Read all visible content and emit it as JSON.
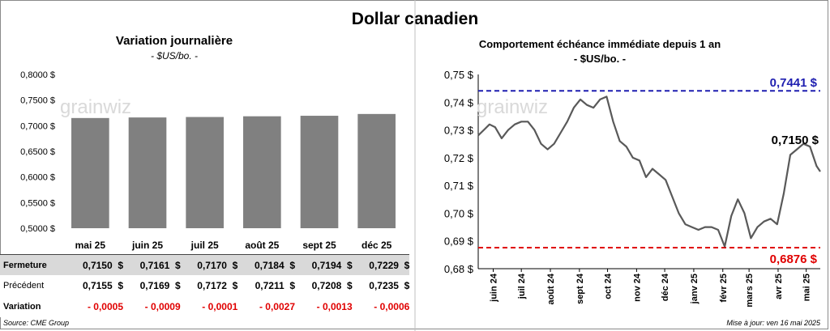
{
  "main_title": "Dollar canadien",
  "left": {
    "title": "Variation  journalière",
    "subtitle": "- $US/bo. -",
    "watermark": "grainwiz",
    "chart_data": {
      "type": "bar",
      "categories": [
        "mai 25",
        "juin 25",
        "juil 25",
        "août 25",
        "sept 25",
        "déc 25"
      ],
      "values": [
        0.715,
        0.7161,
        0.717,
        0.7184,
        0.7194,
        0.7229
      ],
      "ylim": [
        0.5,
        0.8
      ],
      "yticks": [
        "0,5000 $",
        "0,5500 $",
        "0,6000 $",
        "0,6500 $",
        "0,7000 $",
        "0,7500 $",
        "0,8000 $"
      ],
      "bar_color": "#808080"
    },
    "table": {
      "rows": [
        {
          "label": "Fermeture",
          "values": [
            "0,7150  $",
            "0,7161  $",
            "0,7170  $",
            "0,7184  $",
            "0,7194  $",
            "0,7229  $"
          ]
        },
        {
          "label": "Précédent",
          "values": [
            "0,7155  $",
            "0,7169  $",
            "0,7172  $",
            "0,7211  $",
            "0,7208  $",
            "0,7235  $"
          ]
        },
        {
          "label": "Variation",
          "values": [
            "- 0,0005",
            "- 0,0009",
            "- 0,0001",
            "- 0,0027",
            "- 0,0013",
            "- 0,0006"
          ]
        }
      ]
    }
  },
  "right": {
    "title": "Comportement échéance immédiate depuis 1 an",
    "subtitle": "- $US/bo. -",
    "watermark": "grainwiz",
    "chart_data": {
      "type": "line",
      "ylim": [
        0.68,
        0.75
      ],
      "yticks": [
        "0,68 $",
        "0,69 $",
        "0,70 $",
        "0,71 $",
        "0,72 $",
        "0,73 $",
        "0,74 $",
        "0,75 $"
      ],
      "xticks": [
        "juin 24",
        "juil 24",
        "août 24",
        "sept 24",
        "oct 24",
        "nov 24",
        "déc 24",
        "janv 25",
        "févr 25",
        "mars 25",
        "avr 25",
        "mai 25"
      ],
      "x_start": "2024-05-16",
      "x_end": "2025-05-16",
      "high": {
        "value": 0.7441,
        "label": "0,7441 $",
        "color": "#1f1fb0"
      },
      "low": {
        "value": 0.6876,
        "label": "0,6876 $",
        "color": "#e00000"
      },
      "last": {
        "value": 0.715,
        "label": "0,7150 $"
      },
      "series": [
        {
          "values": [
            [
              "2024-05-16",
              0.728
            ],
            [
              "2024-05-22",
              0.73
            ],
            [
              "2024-05-28",
              0.732
            ],
            [
              "2024-06-03",
              0.731
            ],
            [
              "2024-06-10",
              0.727
            ],
            [
              "2024-06-17",
              0.73
            ],
            [
              "2024-06-24",
              0.732
            ],
            [
              "2024-07-01",
              0.733
            ],
            [
              "2024-07-08",
              0.733
            ],
            [
              "2024-07-15",
              0.73
            ],
            [
              "2024-07-22",
              0.725
            ],
            [
              "2024-07-29",
              0.723
            ],
            [
              "2024-08-05",
              0.725
            ],
            [
              "2024-08-12",
              0.729
            ],
            [
              "2024-08-19",
              0.733
            ],
            [
              "2024-08-26",
              0.738
            ],
            [
              "2024-09-02",
              0.741
            ],
            [
              "2024-09-09",
              0.739
            ],
            [
              "2024-09-16",
              0.738
            ],
            [
              "2024-09-23",
              0.741
            ],
            [
              "2024-09-30",
              0.742
            ],
            [
              "2024-10-07",
              0.733
            ],
            [
              "2024-10-14",
              0.726
            ],
            [
              "2024-10-21",
              0.724
            ],
            [
              "2024-10-28",
              0.72
            ],
            [
              "2024-11-04",
              0.719
            ],
            [
              "2024-11-11",
              0.713
            ],
            [
              "2024-11-18",
              0.716
            ],
            [
              "2024-11-25",
              0.714
            ],
            [
              "2024-12-02",
              0.712
            ],
            [
              "2024-12-09",
              0.706
            ],
            [
              "2024-12-16",
              0.7
            ],
            [
              "2024-12-23",
              0.696
            ],
            [
              "2024-12-30",
              0.695
            ],
            [
              "2025-01-06",
              0.694
            ],
            [
              "2025-01-13",
              0.695
            ],
            [
              "2025-01-20",
              0.695
            ],
            [
              "2025-01-27",
              0.694
            ],
            [
              "2025-02-03",
              0.688
            ],
            [
              "2025-02-10",
              0.699
            ],
            [
              "2025-02-17",
              0.705
            ],
            [
              "2025-02-24",
              0.7
            ],
            [
              "2025-03-03",
              0.691
            ],
            [
              "2025-03-10",
              0.695
            ],
            [
              "2025-03-17",
              0.697
            ],
            [
              "2025-03-24",
              0.698
            ],
            [
              "2025-03-31",
              0.696
            ],
            [
              "2025-04-07",
              0.707
            ],
            [
              "2025-04-14",
              0.721
            ],
            [
              "2025-04-21",
              0.723
            ],
            [
              "2025-04-28",
              0.725
            ],
            [
              "2025-05-05",
              0.724
            ],
            [
              "2025-05-12",
              0.717
            ],
            [
              "2025-05-16",
              0.715
            ]
          ]
        }
      ]
    }
  },
  "footer": {
    "source": "Source: CME Group",
    "updated": "Mise à jour: ven 16 mai 2025"
  }
}
